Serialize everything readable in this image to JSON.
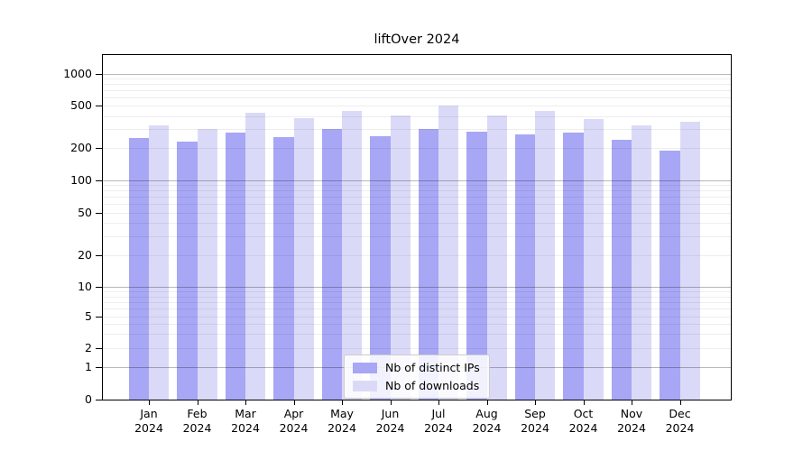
{
  "figure_title": "liftOver 2024",
  "chart_data": {
    "type": "bar",
    "title": "liftOver 2024",
    "categories": [
      "Jan 2024",
      "Feb 2024",
      "Mar 2024",
      "Apr 2024",
      "May 2024",
      "Jun 2024",
      "Jul 2024",
      "Aug 2024",
      "Sep 2024",
      "Oct 2024",
      "Nov 2024",
      "Dec 2024"
    ],
    "series": [
      {
        "name": "Nb of distinct IPs",
        "color": "#a7a7f5",
        "values": [
          250,
          230,
          280,
          255,
          305,
          260,
          300,
          285,
          270,
          280,
          240,
          190
        ]
      },
      {
        "name": "Nb of downloads",
        "color": "#dadaf8",
        "values": [
          330,
          300,
          430,
          380,
          450,
          405,
          500,
          405,
          450,
          375,
          330,
          355
        ]
      }
    ],
    "xlabel": "",
    "ylabel": "",
    "yscale": "symlog",
    "y_ticks": [
      0,
      1,
      2,
      5,
      10,
      20,
      50,
      100,
      200,
      500,
      1000
    ],
    "ylim": [
      0,
      1500
    ],
    "grid": true,
    "legend_position": "lower center",
    "axis_color": "#000000",
    "background_color": "#ffffff"
  }
}
